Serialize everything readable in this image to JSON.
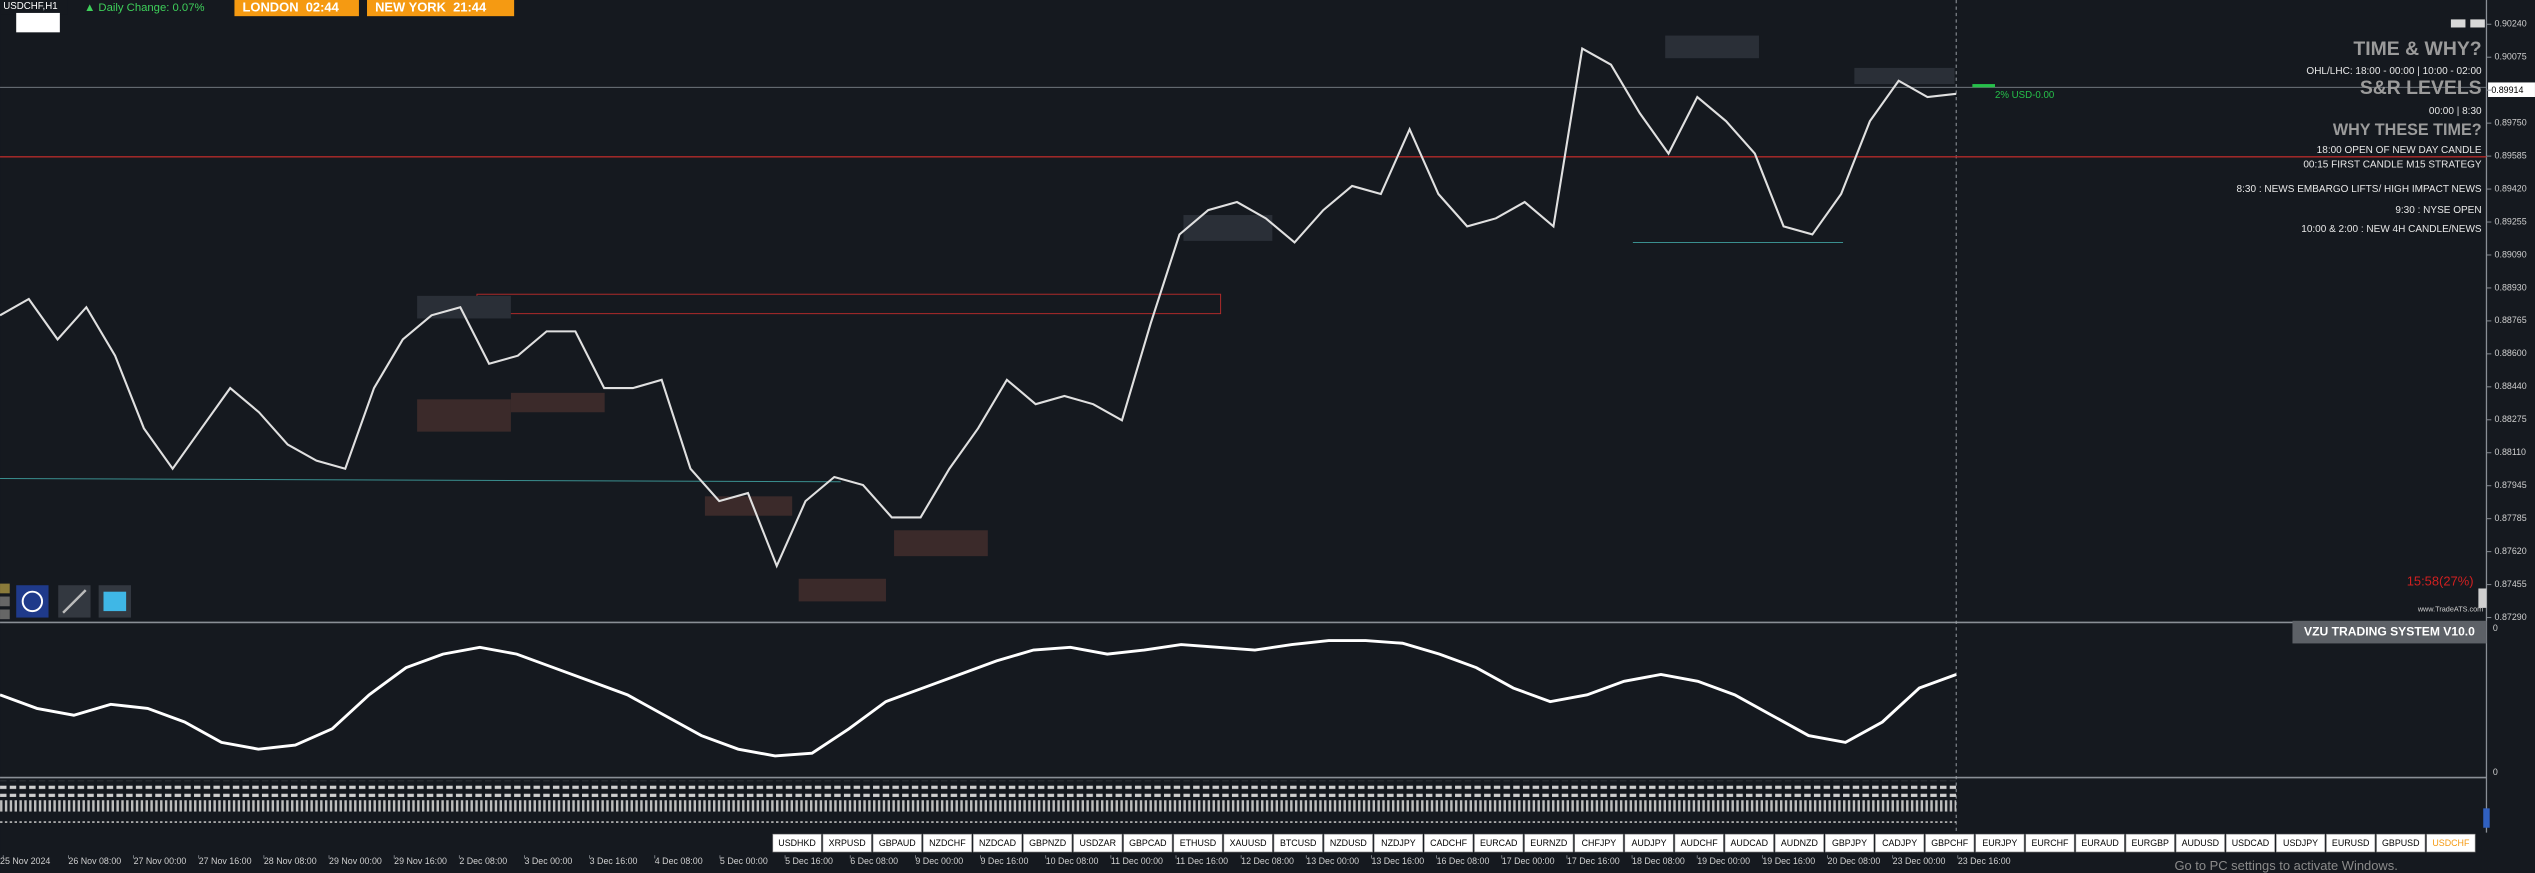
{
  "header": {
    "symbol": "USDCHF,H1",
    "daily_change": "▲ Daily Change: 0.07%",
    "sessions": [
      "LONDON  02:44",
      "NEW YORK  21:44"
    ]
  },
  "info_panel": {
    "title": "TIME & WHY?",
    "ohl": "OHL/LHC: 18:00 - 00:00 | 10:00 - 02:00",
    "sr_title": "S&R LEVELS",
    "sr_times": "00:00 | 8:30",
    "why_title": "WHY THESE TIME?",
    "reasons": [
      "18:00 OPEN OF NEW DAY CANDLE",
      "00:15 FIRST CANDLE M15 STRATEGY",
      "8:30 : NEWS EMBARGO LIFTS/ HIGH IMPACT NEWS",
      "9:30 : NYSE OPEN",
      "10:00 & 2:00 : NEW 4H CANDLE/NEWS"
    ]
  },
  "risk_label": "2% USD-0.00",
  "timer": "15:58(27%)",
  "website": "www.TradeATS.com",
  "current_price": "0.89914",
  "price": {
    "ylim": [
      0.8729,
      0.9024
    ],
    "ticks": [
      "0.90240",
      "0.90075",
      "0.89914",
      "0.89750",
      "0.89585",
      "0.89420",
      "0.89255",
      "0.89090",
      "0.88930",
      "0.88765",
      "0.88600",
      "0.88440",
      "0.88275",
      "0.88110",
      "0.87945",
      "0.87785",
      "0.87620",
      "0.87455",
      "0.87290"
    ],
    "closes": [
      0.88793,
      0.88874,
      0.88673,
      0.88833,
      0.88592,
      0.88231,
      0.8803,
      0.88231,
      0.88431,
      0.88311,
      0.8815,
      0.8807,
      0.8803,
      0.88431,
      0.88673,
      0.88793,
      0.88833,
      0.88552,
      0.88592,
      0.88713,
      0.88713,
      0.88431,
      0.88431,
      0.88472,
      0.8803,
      0.87869,
      0.87909,
      0.87547,
      0.87869,
      0.87989,
      0.87949,
      0.87788,
      0.87788,
      0.8803,
      0.88231,
      0.88472,
      0.88351,
      0.88392,
      0.88351,
      0.88271,
      0.88753,
      0.89195,
      0.89316,
      0.89356,
      0.89275,
      0.89155,
      0.89316,
      0.89436,
      0.89396,
      0.89718,
      0.89396,
      0.89235,
      0.89275,
      0.89356,
      0.89235,
      0.90119,
      0.90039,
      0.89798,
      0.89597,
      0.89878,
      0.89758,
      0.89597,
      0.89235,
      0.89195,
      0.89396,
      0.89758,
      0.89959,
      0.89878,
      0.89894
    ]
  },
  "indicator": {
    "name": "VZU TRADING SYSTEM V10.0",
    "axis_labels": [
      "0",
      "0"
    ],
    "ylim": [
      0,
      100
    ],
    "values": [
      55,
      45,
      40,
      48,
      45,
      35,
      20,
      15,
      18,
      30,
      55,
      75,
      85,
      90,
      85,
      75,
      65,
      55,
      40,
      25,
      15,
      10,
      12,
      30,
      50,
      60,
      70,
      80,
      88,
      90,
      85,
      88,
      92,
      90,
      88,
      92,
      95,
      95,
      93,
      85,
      75,
      60,
      50,
      55,
      65,
      70,
      65,
      55,
      40,
      25,
      20,
      35,
      60,
      70
    ]
  },
  "time_axis": [
    "25 Nov 2024",
    "26 Nov 08:00",
    "27 Nov 00:00",
    "27 Nov 16:00",
    "28 Nov 08:00",
    "29 Nov 00:00",
    "29 Nov 16:00",
    "2 Dec 08:00",
    "3 Dec 00:00",
    "3 Dec 16:00",
    "4 Dec 08:00",
    "5 Dec 00:00",
    "5 Dec 16:00",
    "6 Dec 08:00",
    "9 Dec 00:00",
    "9 Dec 16:00",
    "10 Dec 08:00",
    "11 Dec 00:00",
    "11 Dec 16:00",
    "12 Dec 08:00",
    "13 Dec 00:00",
    "13 Dec 16:00",
    "16 Dec 08:00",
    "17 Dec 00:00",
    "17 Dec 16:00",
    "18 Dec 08:00",
    "19 Dec 00:00",
    "19 Dec 16:00",
    "20 Dec 08:00",
    "23 Dec 00:00",
    "23 Dec 16:00"
  ],
  "symbols": [
    "USDHKD",
    "XRPUSD",
    "GBPAUD",
    "NZDCHF",
    "NZDCAD",
    "GBPNZD",
    "USDZAR",
    "GBPCAD",
    "ETHUSD",
    "XAUUSD",
    "BTCUSD",
    "NZDUSD",
    "NZDJPY",
    "CADCHF",
    "EURCAD",
    "EURNZD",
    "CHFJPY",
    "AUDJPY",
    "AUDCHF",
    "AUDCAD",
    "AUDNZD",
    "GBPJPY",
    "CADJPY",
    "GBPCHF",
    "EURJPY",
    "EURCHF",
    "EURAUD",
    "EURGBP",
    "AUDUSD",
    "USDCAD",
    "USDJPY",
    "EURUSD",
    "GBPUSD",
    "USDCHF"
  ],
  "watermark": "Go to PC settings to activate Windows."
}
